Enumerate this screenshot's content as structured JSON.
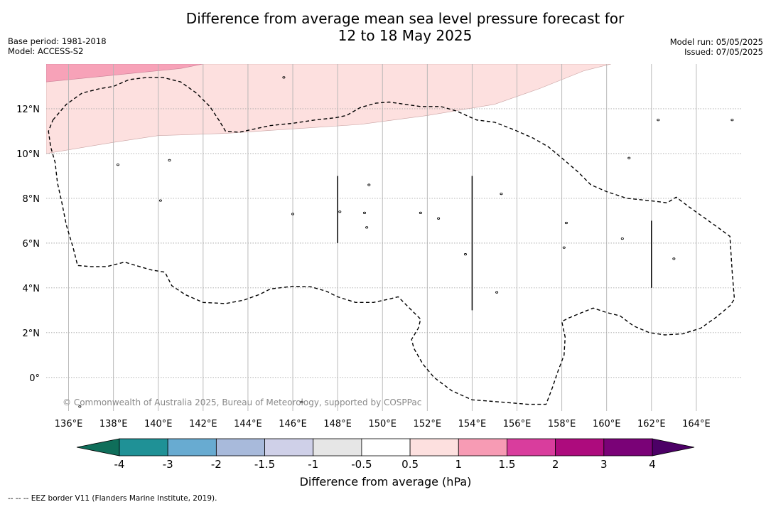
{
  "title": {
    "line1": "Difference from average mean sea level pressure forecast for",
    "line2": "12 to 18 May 2025"
  },
  "meta_left": {
    "base_period": "Base period: 1981-2018",
    "model": "Model: ACCESS-S2"
  },
  "meta_right": {
    "model_run": "Model run: 05/05/2025",
    "issued": "Issued: 07/05/2025"
  },
  "copyright": "© Commonwealth of Australia 2025, Bureau of Meteorology, supported by COSPPac",
  "footnote": "--  --  -- EEZ border V11 (Flanders Marine Institute, 2019).",
  "map": {
    "lon_range": [
      135,
      166
    ],
    "lat_range": [
      -1.5,
      14
    ],
    "lon_ticks": [
      {
        "value": 136,
        "label": "136°E"
      },
      {
        "value": 138,
        "label": "138°E"
      },
      {
        "value": 140,
        "label": "140°E"
      },
      {
        "value": 142,
        "label": "142°E"
      },
      {
        "value": 144,
        "label": "144°E"
      },
      {
        "value": 146,
        "label": "146°E"
      },
      {
        "value": 148,
        "label": "148°E"
      },
      {
        "value": 150,
        "label": "150°E"
      },
      {
        "value": 152,
        "label": "152°E"
      },
      {
        "value": 154,
        "label": "154°E"
      },
      {
        "value": 156,
        "label": "156°E"
      },
      {
        "value": 158,
        "label": "158°E"
      },
      {
        "value": 160,
        "label": "160°E"
      },
      {
        "value": 162,
        "label": "162°E"
      },
      {
        "value": 164,
        "label": "164°E"
      }
    ],
    "lat_ticks": [
      {
        "value": 12,
        "label": "12°N"
      },
      {
        "value": 10,
        "label": "10°N"
      },
      {
        "value": 8,
        "label": "8°N"
      },
      {
        "value": 6,
        "label": "6°N"
      },
      {
        "value": 4,
        "label": "4°N"
      },
      {
        "value": 2,
        "label": "2°N"
      },
      {
        "value": 0,
        "label": "0°"
      }
    ],
    "anomaly_band_0_5_to_1": [
      [
        135,
        10
      ],
      [
        138,
        10.5
      ],
      [
        140,
        10.8
      ],
      [
        143,
        10.9
      ],
      [
        146,
        11.1
      ],
      [
        149,
        11.3
      ],
      [
        152,
        11.7
      ],
      [
        155,
        12.2
      ],
      [
        157,
        12.9
      ],
      [
        159,
        13.7
      ],
      [
        160.2,
        14
      ],
      [
        135,
        14
      ]
    ],
    "anomaly_band_1_to_1_5": [
      [
        135,
        13.2
      ],
      [
        137,
        13.4
      ],
      [
        139,
        13.6
      ],
      [
        141,
        13.8
      ],
      [
        142,
        14
      ],
      [
        135,
        14
      ]
    ],
    "eez_border": [
      [
        135.3,
        11.5
      ],
      [
        135.9,
        12.2
      ],
      [
        136.6,
        12.7
      ],
      [
        137.4,
        12.9
      ],
      [
        138,
        13
      ],
      [
        138.7,
        13.3
      ],
      [
        139.5,
        13.4
      ],
      [
        140.2,
        13.4
      ],
      [
        141,
        13.2
      ],
      [
        141.7,
        12.7
      ],
      [
        142.3,
        12.1
      ],
      [
        142.7,
        11.5
      ],
      [
        143,
        11
      ],
      [
        143.6,
        10.95
      ],
      [
        144.3,
        11.1
      ],
      [
        145,
        11.25
      ],
      [
        146,
        11.35
      ],
      [
        147,
        11.5
      ],
      [
        147.9,
        11.6
      ],
      [
        148.4,
        11.7
      ],
      [
        149,
        12.05
      ],
      [
        149.7,
        12.25
      ],
      [
        150.3,
        12.3
      ],
      [
        151,
        12.2
      ],
      [
        151.7,
        12.1
      ],
      [
        152.6,
        12.1
      ],
      [
        153.3,
        11.9
      ],
      [
        154.2,
        11.5
      ],
      [
        155,
        11.4
      ],
      [
        155.9,
        11.05
      ],
      [
        156.7,
        10.7
      ],
      [
        157.4,
        10.3
      ],
      [
        158,
        9.8
      ],
      [
        158.7,
        9.2
      ],
      [
        159.3,
        8.6
      ],
      [
        160,
        8.3
      ],
      [
        160.9,
        8
      ],
      [
        161.9,
        7.9
      ],
      [
        162.7,
        7.8
      ],
      [
        163.1,
        8.05
      ],
      [
        163.7,
        7.6
      ],
      [
        164.4,
        7.1
      ],
      [
        165.1,
        6.6
      ],
      [
        165.5,
        6.3
      ],
      [
        165.6,
        4.7
      ],
      [
        165.7,
        3.5
      ],
      [
        165.5,
        3.2
      ],
      [
        164.9,
        2.7
      ],
      [
        164.2,
        2.2
      ],
      [
        163.4,
        1.95
      ],
      [
        162.6,
        1.9
      ],
      [
        161.9,
        2
      ],
      [
        161.2,
        2.3
      ],
      [
        160.6,
        2.75
      ],
      [
        160,
        2.9
      ],
      [
        159.4,
        3.1
      ],
      [
        158.9,
        2.9
      ],
      [
        158.3,
        2.65
      ],
      [
        158,
        2.5
      ],
      [
        158.15,
        1.8
      ],
      [
        158.1,
        1
      ],
      [
        157.8,
        0.2
      ],
      [
        157.6,
        -0.4
      ],
      [
        157.3,
        -1.2
      ],
      [
        156.5,
        -1.2
      ],
      [
        155.3,
        -1.1
      ],
      [
        154,
        -1
      ],
      [
        153.1,
        -0.6
      ],
      [
        152.3,
        0
      ],
      [
        151.8,
        0.6
      ],
      [
        151.4,
        1.3
      ],
      [
        151.3,
        1.7
      ],
      [
        151.6,
        2.2
      ],
      [
        151.7,
        2.6
      ],
      [
        151.3,
        3
      ],
      [
        150.7,
        3.6
      ],
      [
        150.3,
        3.5
      ],
      [
        149.6,
        3.35
      ],
      [
        148.8,
        3.35
      ],
      [
        148,
        3.6
      ],
      [
        147.5,
        3.85
      ],
      [
        146.8,
        4.05
      ],
      [
        146,
        4.07
      ],
      [
        145,
        3.95
      ],
      [
        144.5,
        3.7
      ],
      [
        143.8,
        3.45
      ],
      [
        143,
        3.3
      ],
      [
        142,
        3.35
      ],
      [
        141.2,
        3.7
      ],
      [
        140.6,
        4.1
      ],
      [
        140.3,
        4.7
      ],
      [
        139.7,
        4.8
      ],
      [
        139,
        5
      ],
      [
        138.5,
        5.15
      ],
      [
        137.7,
        4.95
      ],
      [
        137,
        4.95
      ],
      [
        136.4,
        5
      ],
      [
        136.2,
        5.8
      ],
      [
        135.9,
        6.8
      ],
      [
        135.7,
        7.8
      ],
      [
        135.5,
        8.7
      ],
      [
        135.4,
        9.6
      ],
      [
        135.2,
        10.3
      ],
      [
        135.1,
        11
      ],
      [
        135.3,
        11.5
      ]
    ],
    "meridian_segments": [
      {
        "lon": 148,
        "lat_from": 6,
        "lat_to": 9
      },
      {
        "lon": 154,
        "lat_from": 3,
        "lat_to": 9
      },
      {
        "lon": 162,
        "lat_from": 4,
        "lat_to": 7
      }
    ],
    "islands": [
      [
        145.6,
        13.4
      ],
      [
        138.2,
        9.5
      ],
      [
        140.5,
        9.7
      ],
      [
        140.1,
        7.9
      ],
      [
        148.1,
        7.4
      ],
      [
        149.4,
        8.6
      ],
      [
        146,
        7.3
      ],
      [
        149.2,
        7.35
      ],
      [
        149.3,
        6.7
      ],
      [
        151.7,
        7.35
      ],
      [
        152.5,
        7.1
      ],
      [
        153.7,
        5.5
      ],
      [
        155.3,
        8.2
      ],
      [
        158.2,
        6.9
      ],
      [
        158.1,
        5.8
      ],
      [
        161,
        9.8
      ],
      [
        160.7,
        6.2
      ],
      [
        163,
        5.3
      ],
      [
        162.3,
        11.5
      ],
      [
        165.6,
        11.5
      ],
      [
        155.1,
        3.8
      ],
      [
        136.5,
        -1.3
      ],
      [
        146.4,
        -1.1
      ]
    ]
  },
  "colorbar": {
    "label": "Difference from average (hPa)",
    "boundaries": [
      {
        "value": -4,
        "label": "-4"
      },
      {
        "value": -3,
        "label": "-3"
      },
      {
        "value": -2,
        "label": "-2"
      },
      {
        "value": -1.5,
        "label": "-1.5"
      },
      {
        "value": -1,
        "label": "-1"
      },
      {
        "value": -0.5,
        "label": "-0.5"
      },
      {
        "value": 0.5,
        "label": "0.5"
      },
      {
        "value": 1,
        "label": "1"
      },
      {
        "value": 1.5,
        "label": "1.5"
      },
      {
        "value": 2,
        "label": "2"
      },
      {
        "value": 3,
        "label": "3"
      },
      {
        "value": 4,
        "label": "4"
      }
    ],
    "extend_low_color": "#0f6e5a",
    "extend_high_color": "#4c0066",
    "bin_colors": [
      "#1f9196",
      "#68abd1",
      "#a8badb",
      "#cfd0e8",
      "#e6e6e6",
      "#ffffff",
      "#fde0df",
      "#f79bb4",
      "#d93d9d",
      "#ad0b7d",
      "#7a0277"
    ]
  }
}
